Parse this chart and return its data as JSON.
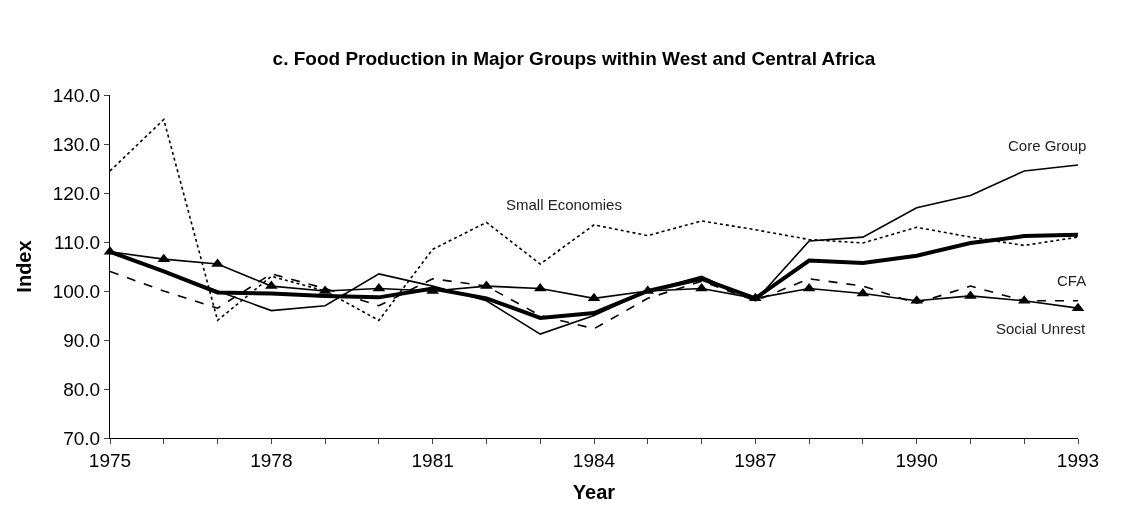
{
  "chart_data": {
    "type": "line",
    "title": "c. Food Production in Major Groups within West and Central Africa",
    "xlabel": "Year",
    "ylabel": "Index",
    "x": [
      1975,
      1976,
      1977,
      1978,
      1979,
      1980,
      1981,
      1982,
      1983,
      1984,
      1985,
      1986,
      1987,
      1988,
      1989,
      1990,
      1991,
      1992,
      1993
    ],
    "series": [
      {
        "name": "Small Economies",
        "color": "#000000",
        "line_style": "dotted",
        "marker": "none",
        "values": [
          124.5,
          135,
          94,
          103,
          100,
          94,
          108.5,
          114,
          105.5,
          113.5,
          111.3,
          114.3,
          112.5,
          110.5,
          109.8,
          113,
          111,
          109.3,
          111
        ]
      },
      {
        "name": "Core Group",
        "color": "#000000",
        "line_style": "solid",
        "marker": "none",
        "values": [
          108,
          104,
          100,
          96,
          97,
          103.5,
          101,
          98,
          91.2,
          95,
          100,
          103,
          98,
          110.2,
          111,
          117,
          119.5,
          124.5,
          125.7
        ]
      },
      {
        "color": "#000000",
        "line_style": "solid",
        "marker": "none",
        "values": [
          108,
          104,
          99.7,
          99.5,
          99,
          98.7,
          100.5,
          98.5,
          94.5,
          95.5,
          100,
          102.5,
          98.5,
          106.2,
          105.7,
          107.2,
          109.8,
          111.2,
          111.5
        ]
      },
      {
        "name": "CFA",
        "color": "#000000",
        "line_style": "dashed",
        "marker": "none",
        "values": [
          104,
          100,
          96.5,
          103.5,
          100.5,
          97,
          102.5,
          101,
          95,
          92.3,
          98.5,
          102,
          98,
          102.5,
          101,
          97.5,
          101,
          98,
          98
        ]
      },
      {
        "name": "Social Unrest",
        "color": "#000000",
        "line_style": "solid",
        "marker": "triangle",
        "values": [
          108,
          106.5,
          105.5,
          101,
          100,
          100.5,
          100,
          101,
          100.5,
          98.5,
          100,
          100.5,
          98.5,
          100.5,
          99.5,
          98,
          99,
          98,
          96.5
        ]
      }
    ],
    "xlim": [
      1975,
      1993
    ],
    "xticks": [
      1975,
      {
        "value": 1976,
        "label": null
      },
      {
        "value": 1977,
        "label": null
      },
      1978,
      {
        "value": 1979,
        "label": null
      },
      {
        "value": 1980,
        "label": null
      },
      1981,
      {
        "value": 1982,
        "label": null
      },
      {
        "value": 1983,
        "label": null
      },
      1984,
      {
        "value": 1985,
        "label": null
      },
      {
        "value": 1986,
        "label": null
      },
      1987,
      {
        "value": 1988,
        "label": null
      },
      {
        "value": 1989,
        "label": null
      },
      1990,
      {
        "value": 1991,
        "label": null
      },
      {
        "value": 1992,
        "label": null
      },
      1993
    ],
    "ylim": [
      70,
      140
    ],
    "yticks": [
      {
        "value": 70,
        "label": "70.0"
      },
      {
        "value": 80,
        "label": "80.0"
      },
      {
        "value": 90,
        "label": "90.0"
      },
      {
        "value": 100,
        "label": "100.0"
      },
      {
        "value": 110,
        "label": "110.0"
      },
      {
        "value": 120,
        "label": "120.0"
      },
      {
        "value": 130,
        "label": "130.0"
      },
      {
        "value": 140,
        "label": "140.0"
      }
    ],
    "grid": false,
    "legend": false
  }
}
